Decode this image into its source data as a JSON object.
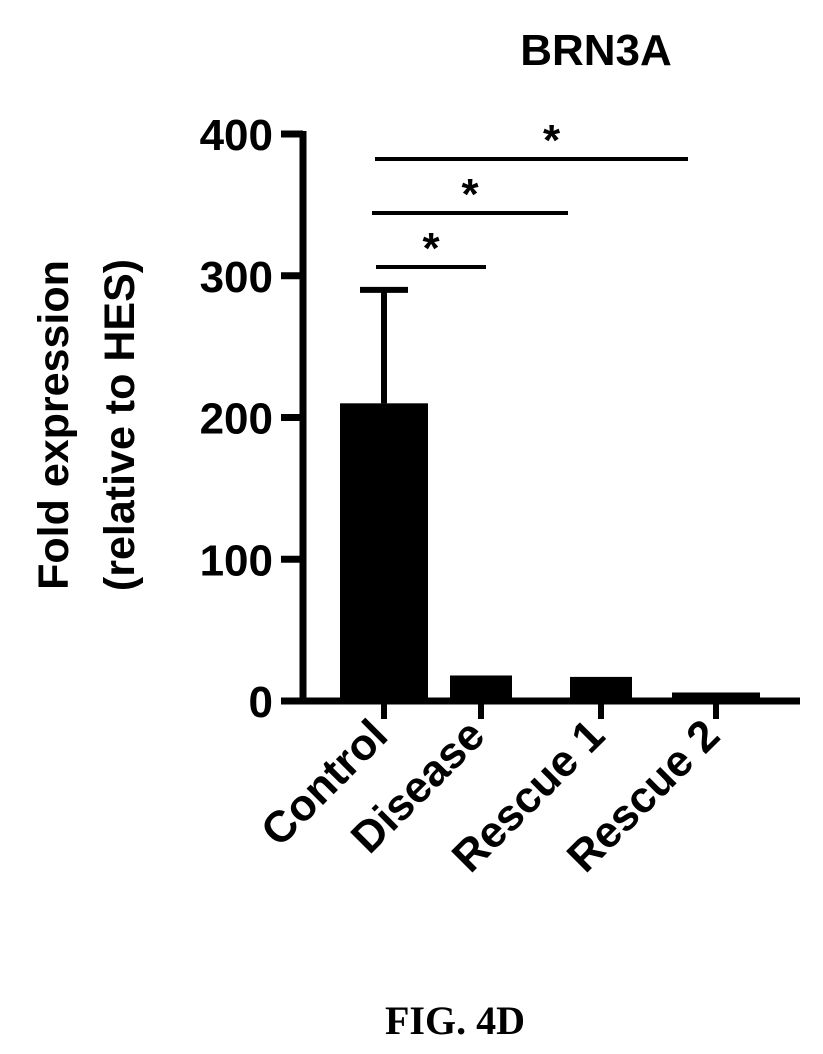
{
  "chart_data": {
    "type": "bar",
    "title": "BRN3A",
    "ylabel_line1": "Fold expression",
    "ylabel_line2": "(relative to HES)",
    "xlabel": "",
    "categories": [
      "Control",
      "Disease",
      "Rescue 1",
      "Rescue 2"
    ],
    "values": [
      210,
      18,
      17,
      6
    ],
    "error_upper": [
      290,
      null,
      null,
      null
    ],
    "ylim": [
      0,
      400
    ],
    "yticks": [
      0,
      100,
      200,
      300,
      400
    ],
    "ytick_labels": [
      "0",
      "100",
      "200",
      "300",
      "400"
    ],
    "significance": [
      {
        "from": "Control",
        "to": "Disease",
        "label": "*"
      },
      {
        "from": "Control",
        "to": "Rescue 1",
        "label": "*"
      },
      {
        "from": "Control",
        "to": "Rescue 2",
        "label": "*"
      }
    ],
    "grid": false,
    "bar_color": "#000000"
  },
  "caption": "FIG. 4D"
}
